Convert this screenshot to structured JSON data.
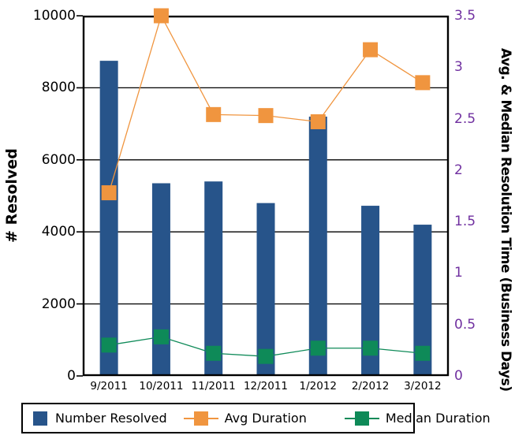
{
  "chart_data": {
    "type": "bar",
    "subtype": "combo-bar-line-dual-axis",
    "categories": [
      "9/2011",
      "10/2011",
      "11/2011",
      "12/2011",
      "1/2012",
      "2/2012",
      "3/2012"
    ],
    "series": [
      {
        "name": "Number Resolved",
        "type": "bar",
        "axis": "left",
        "color": "#27548A",
        "values": [
          8750,
          5350,
          5400,
          4800,
          7200,
          4725,
          4200
        ]
      },
      {
        "name": "Avg Duration",
        "type": "line",
        "axis": "right",
        "color": "#F0953F",
        "values": [
          1.78,
          3.5,
          2.54,
          2.53,
          2.47,
          3.17,
          2.85
        ]
      },
      {
        "name": "Median Duration",
        "type": "line",
        "axis": "right",
        "color": "#0E8A58",
        "values": [
          0.3,
          0.38,
          0.22,
          0.19,
          0.27,
          0.27,
          0.22
        ]
      }
    ],
    "left_axis": {
      "label": "# Resolved",
      "min": 0,
      "max": 10000,
      "step": 2000,
      "tick_labels": [
        "0",
        "2000",
        "4000",
        "6000",
        "8000",
        "10000"
      ],
      "tick_color": "#000000"
    },
    "right_axis": {
      "label": "Avg. & Median Resolution Time (Business Days)",
      "min": 0,
      "max": 3.5,
      "step": 0.5,
      "tick_labels": [
        "0",
        "0.5",
        "1",
        "1.5",
        "2",
        "2.5",
        "3",
        "3.5"
      ],
      "tick_color": "#7030A0"
    },
    "grid": true,
    "grid_color": "#000000",
    "legend_position": "bottom"
  },
  "legend": {
    "items": [
      {
        "label": "Number Resolved",
        "color": "#27548A",
        "marker": "square"
      },
      {
        "label": "Avg Duration",
        "color": "#F0953F",
        "marker": "square-with-line"
      },
      {
        "label": "Median Duration",
        "color": "#0E8A58",
        "marker": "square-with-line"
      }
    ]
  }
}
